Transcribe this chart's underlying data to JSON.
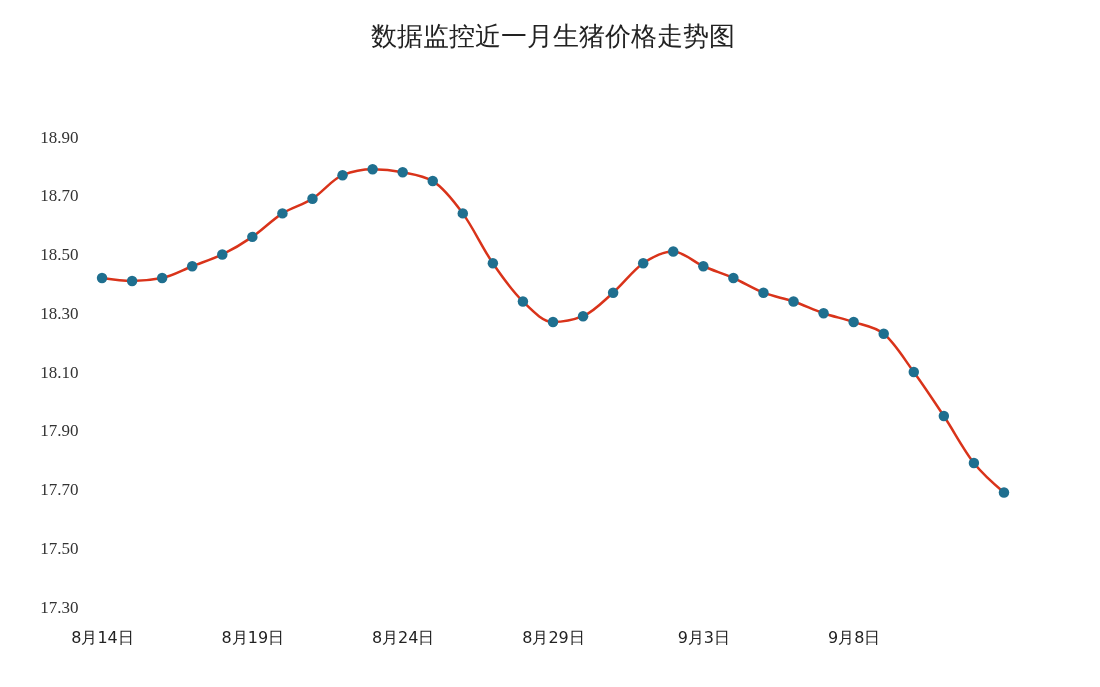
{
  "chart_data": {
    "type": "line",
    "title": "数据监控近一月生猪价格走势图",
    "categories": [
      "8月14日",
      null,
      null,
      null,
      null,
      "8月19日",
      null,
      null,
      null,
      null,
      "8月24日",
      null,
      null,
      null,
      null,
      "8月29日",
      null,
      null,
      null,
      null,
      "9月3日",
      null,
      null,
      null,
      null,
      "9月8日",
      null,
      null,
      null,
      null,
      null
    ],
    "series": [
      {
        "color": "#d9331a",
        "values": [
          18.42,
          18.41,
          18.42,
          18.46,
          18.5,
          18.56,
          18.64,
          18.69,
          18.77,
          18.79,
          18.78,
          18.75,
          18.64,
          18.47,
          18.34,
          18.27,
          18.29,
          18.37,
          18.47,
          18.51,
          18.46,
          18.42,
          18.37,
          18.34,
          18.3,
          18.27,
          18.23,
          18.1,
          17.95,
          17.79,
          17.69
        ]
      }
    ],
    "ylim": [
      17.3,
      18.9
    ],
    "yticks": [
      {
        "value": 17.3,
        "label": "17.30"
      },
      {
        "value": 17.5,
        "label": "17.50"
      },
      {
        "value": 17.7,
        "label": "17.70"
      },
      {
        "value": 17.9,
        "label": "17.90"
      },
      {
        "value": 18.1,
        "label": "18.10"
      },
      {
        "value": 18.3,
        "label": "18.30"
      },
      {
        "value": 18.5,
        "label": "18.50"
      },
      {
        "value": 18.7,
        "label": "18.70"
      },
      {
        "value": 18.9,
        "label": "18.90"
      }
    ],
    "marker": "circle",
    "line_style": "solid",
    "grid": false
  }
}
